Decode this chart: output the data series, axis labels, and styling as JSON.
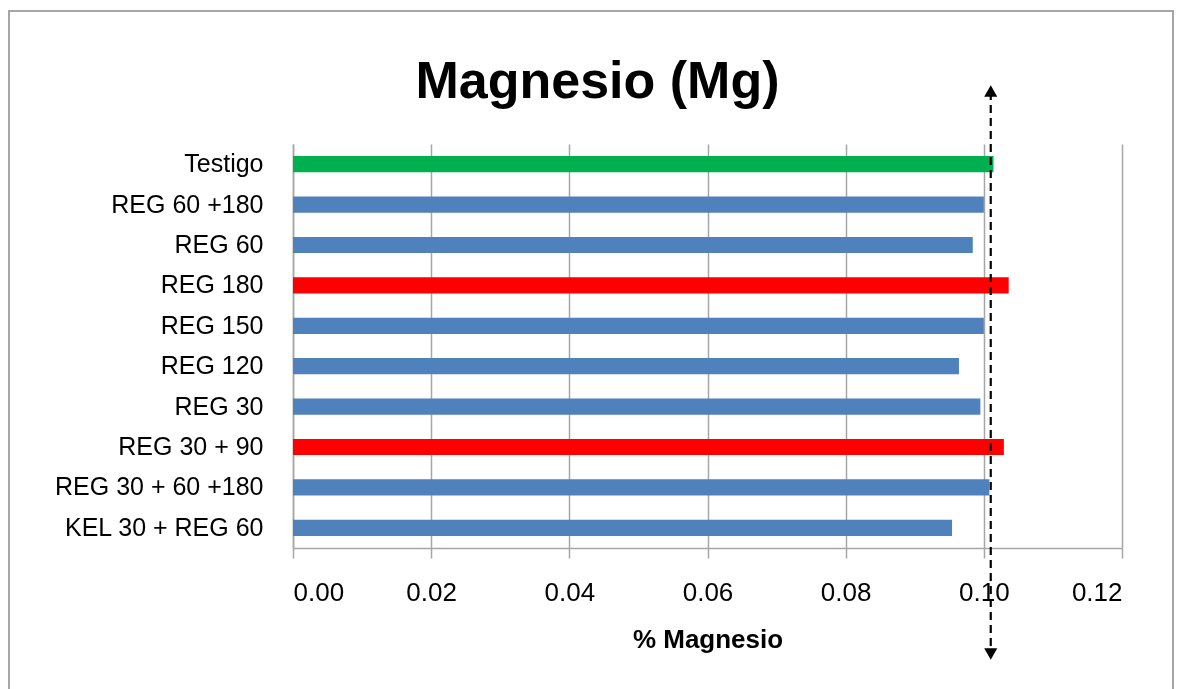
{
  "chart_data": {
    "type": "bar",
    "orientation": "horizontal",
    "title": "Magnesio (Mg)",
    "xlabel": "% Magnesio",
    "categories": [
      "Testigo",
      "REG 60 +180",
      "REG 60",
      "REG 180",
      "REG 150",
      "REG 120",
      "REG 30",
      "REG 30 + 90",
      "REG 30 + 60 +180",
      "KEL 30 + REG 60"
    ],
    "values": [
      0.1014,
      0.1,
      0.0984,
      0.1036,
      0.1,
      0.0964,
      0.0995,
      0.1029,
      0.1008,
      0.0954
    ],
    "colors": [
      "#00b050",
      "#4f81bd",
      "#4f81bd",
      "#ff0000",
      "#4f81bd",
      "#4f81bd",
      "#4f81bd",
      "#ff0000",
      "#4f81bd",
      "#4f81bd"
    ],
    "xlim": [
      0,
      0.12
    ],
    "xticks": [
      {
        "value": 0,
        "label": "0.00"
      },
      0.02,
      0.04,
      0.06,
      0.08,
      {
        "value": 0.1,
        "label": "0.10"
      },
      0.12
    ],
    "grid": "x",
    "ref_lines": [
      {
        "axis": "x",
        "value": 0.101,
        "color": "#000000",
        "line_style": "dashed"
      }
    ]
  }
}
